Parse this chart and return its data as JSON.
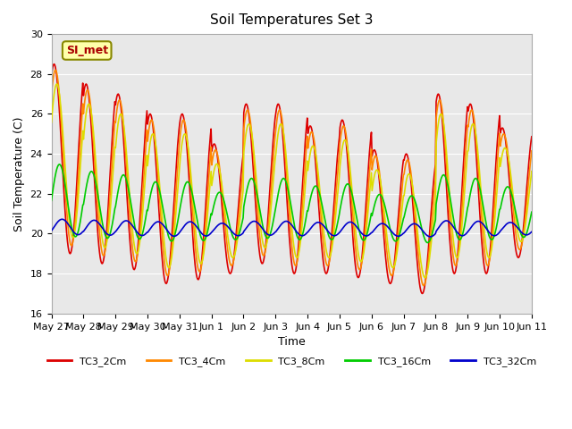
{
  "title": "Soil Temperatures Set 3",
  "xlabel": "Time",
  "ylabel": "Soil Temperature (C)",
  "ylim": [
    16,
    30
  ],
  "yticks": [
    16,
    18,
    20,
    22,
    24,
    26,
    28,
    30
  ],
  "plot_bg_color": "#e8e8e8",
  "fig_bg_color": "#ffffff",
  "annotation_text": "SI_met",
  "annotation_bg": "#ffffaa",
  "annotation_border": "#888800",
  "annotation_text_color": "#aa0000",
  "series_colors": {
    "TC3_2Cm": "#dd0000",
    "TC3_4Cm": "#ff8800",
    "TC3_8Cm": "#dddd00",
    "TC3_16Cm": "#00cc00",
    "TC3_32Cm": "#0000cc"
  },
  "x_tick_labels": [
    "May 27",
    "May 28",
    "May 29",
    "May 30",
    "May 31",
    "Jun 1",
    "Jun 2",
    "Jun 3",
    "Jun 4",
    "Jun 5",
    "Jun 6",
    "Jun 7",
    "Jun 8",
    "Jun 9",
    "Jun 10",
    "Jun 11"
  ],
  "num_days": 15,
  "points_per_day": 48,
  "peak_2cm": [
    28.5,
    27.5,
    27.0,
    26.0,
    26.0,
    24.5,
    26.5,
    26.5,
    25.4,
    25.7,
    24.2,
    24.0,
    27.0,
    26.5,
    25.3
  ],
  "min_2cm": [
    19.0,
    18.5,
    18.2,
    17.5,
    17.7,
    18.0,
    18.5,
    18.0,
    18.0,
    17.8,
    17.5,
    17.0,
    18.0,
    18.0,
    18.8
  ],
  "linewidth": 1.2
}
